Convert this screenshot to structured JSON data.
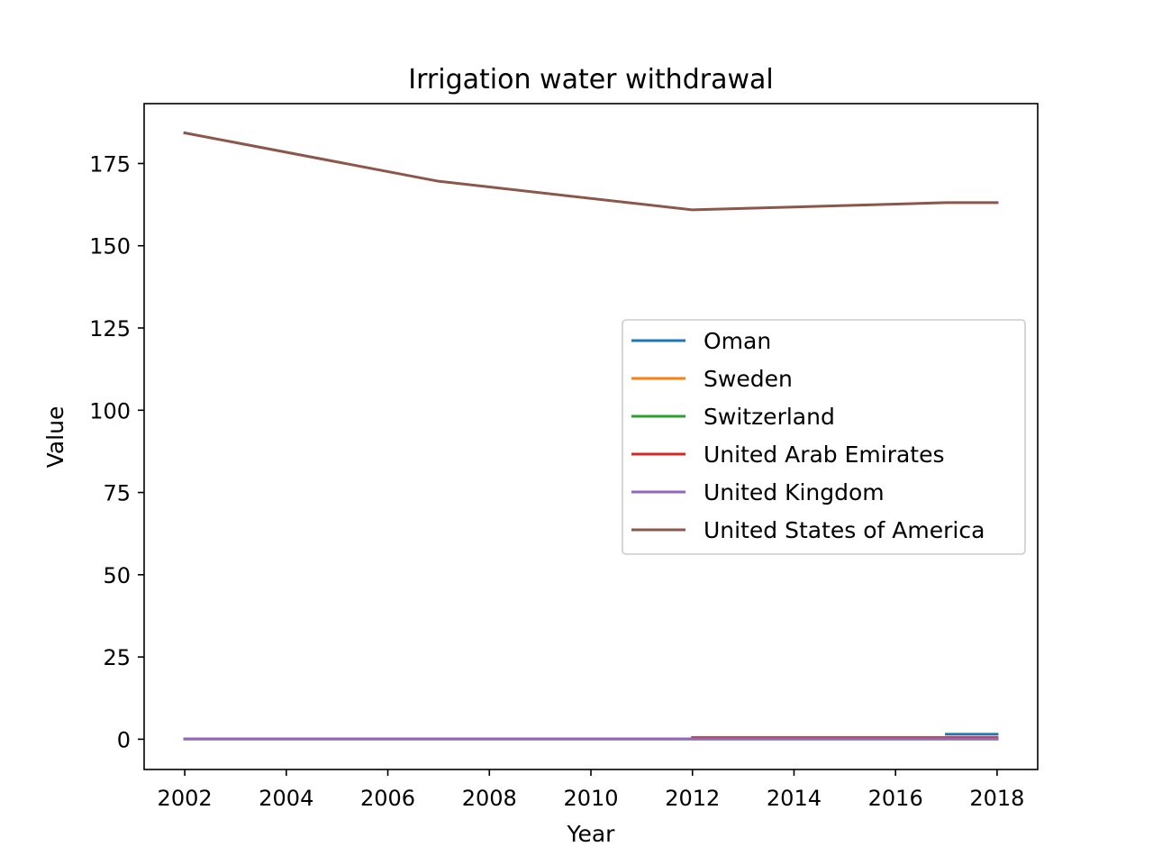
{
  "chart_data": {
    "type": "line",
    "title": "Irrigation water withdrawal",
    "xlabel": "Year",
    "ylabel": "Value",
    "xlim": [
      2001.2,
      2018.8
    ],
    "ylim": [
      -9.2,
      193.2
    ],
    "xticks": [
      2002,
      2004,
      2006,
      2008,
      2010,
      2012,
      2014,
      2016,
      2018
    ],
    "yticks": [
      0,
      25,
      50,
      75,
      100,
      125,
      150,
      175
    ],
    "grid": false,
    "legend_position": "center-right",
    "series": [
      {
        "name": "Oman",
        "color": "#1f77b4",
        "x": [
          2017,
          2018
        ],
        "y": [
          1.5,
          1.5
        ]
      },
      {
        "name": "Sweden",
        "color": "#ff7f0e",
        "x": [
          2002,
          2007,
          2012,
          2017,
          2018
        ],
        "y": [
          0.1,
          0.1,
          0.1,
          0.1,
          0.1
        ]
      },
      {
        "name": "Switzerland",
        "color": "#2ca02c",
        "x": [
          2002,
          2007,
          2012,
          2017,
          2018
        ],
        "y": [
          0.05,
          0.05,
          0.05,
          0.05,
          0.05
        ]
      },
      {
        "name": "United Arab Emirates",
        "color": "#d62728",
        "x": [
          2012,
          2017,
          2018
        ],
        "y": [
          0.5,
          0.5,
          0.5
        ]
      },
      {
        "name": "United Kingdom",
        "color": "#9467bd",
        "x": [
          2002,
          2007,
          2012,
          2017,
          2018
        ],
        "y": [
          0.1,
          0.1,
          0.1,
          0.1,
          0.1
        ]
      },
      {
        "name": "United States of America",
        "color": "#8c564b",
        "x": [
          2002,
          2007,
          2012,
          2017,
          2018
        ],
        "y": [
          184.3,
          169.6,
          160.9,
          163.1,
          163.1
        ]
      }
    ]
  }
}
